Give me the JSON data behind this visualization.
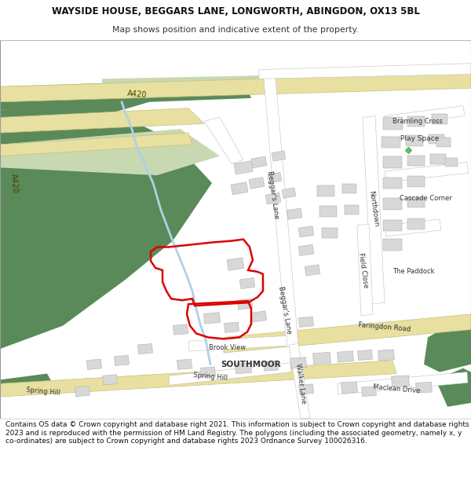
{
  "title_line1": "WAYSIDE HOUSE, BEGGARS LANE, LONGWORTH, ABINGDON, OX13 5BL",
  "title_line2": "Map shows position and indicative extent of the property.",
  "footer": "Contains OS data © Crown copyright and database right 2021. This information is subject to Crown copyright and database rights 2023 and is reproduced with the permission of HM Land Registry. The polygons (including the associated geometry, namely x, y co-ordinates) are subject to Crown copyright and database rights 2023 Ordnance Survey 100026316.",
  "bg_color": "#ffffff",
  "map_bg": "#f2f0ec",
  "green_dark": "#5a8a5a",
  "green_light": "#c8d8b0",
  "water_color": "#b0d0e8",
  "building_color": "#d8d8d8",
  "building_outline": "#aaaaaa",
  "road_yellow": "#e8e0a0",
  "road_yellow_edge": "#c8c080",
  "road_white": "#ffffff",
  "road_white_edge": "#c0c0c0",
  "red_boundary": "#dd0000",
  "title_fontsize": 8.5,
  "subtitle_fontsize": 7.8,
  "footer_fontsize": 6.5,
  "label_color": "#333333",
  "road_label_color": "#444444"
}
